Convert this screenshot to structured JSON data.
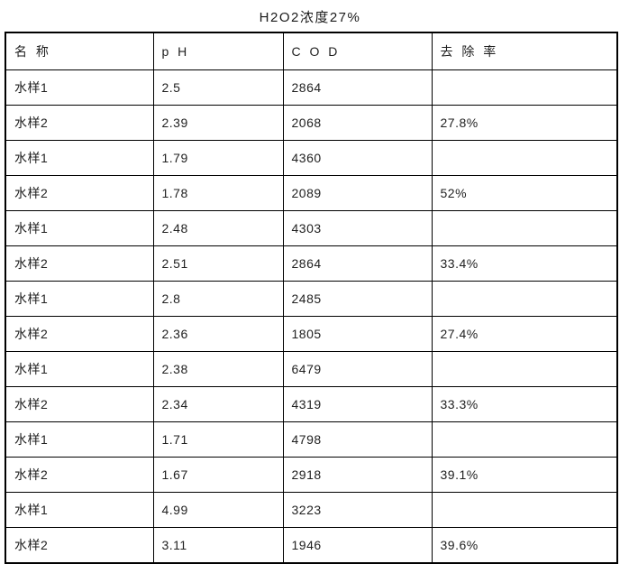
{
  "title": "H2O2浓度27%",
  "table": {
    "headers": [
      "名 称",
      "p H",
      "C O D",
      "去 除 率"
    ],
    "rows": [
      [
        "水样1",
        "2.5",
        "2864",
        ""
      ],
      [
        "水样2",
        "2.39",
        "2068",
        "27.8%"
      ],
      [
        "水样1",
        "1.79",
        "4360",
        ""
      ],
      [
        "水样2",
        "1.78",
        "2089",
        "52%"
      ],
      [
        "水样1",
        "2.48",
        "4303",
        ""
      ],
      [
        "水样2",
        "2.51",
        "2864",
        "33.4%"
      ],
      [
        "水样1",
        "2.8",
        "2485",
        ""
      ],
      [
        "水样2",
        "2.36",
        "1805",
        "27.4%"
      ],
      [
        "水样1",
        "2.38",
        "6479",
        ""
      ],
      [
        "水样2",
        "2.34",
        "4319",
        "33.3%"
      ],
      [
        "水样1",
        "1.71",
        "4798",
        ""
      ],
      [
        "水样2",
        "1.67",
        "2918",
        "39.1%"
      ],
      [
        "水样1",
        "4.99",
        "3223",
        ""
      ],
      [
        "水样2",
        "3.11",
        "1946",
        "39.6%"
      ]
    ]
  },
  "colors": {
    "background": "#ffffff",
    "border": "#000000",
    "text": "#1f1f1f"
  }
}
